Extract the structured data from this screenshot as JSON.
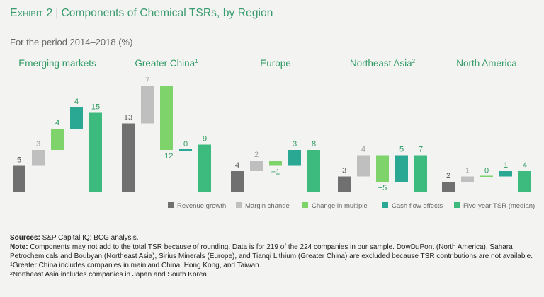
{
  "header": {
    "exhibit": "Exhibit 2",
    "separator": "|",
    "title": "Components of Chemical TSRs, by Region",
    "subtitle": "For the period 2014–2018 (%)"
  },
  "colors": {
    "revenue": "#707070",
    "margin": "#bfbfbf",
    "multiple": "#7ed36a",
    "cashflow": "#2aa893",
    "tsr": "#3dbb7e",
    "label_green": "#2f9a63",
    "label_gray": "#a0a0a0",
    "label_dark": "#555555"
  },
  "chart_data": {
    "type": "waterfall",
    "title": "Components of Chemical TSRs, by Region",
    "unit": "%",
    "component_names": [
      "Revenue growth",
      "Margin change",
      "Change in multiple",
      "Cash flow effects",
      "Five-year TSR (median)"
    ],
    "legend_position": "bottom-right",
    "panels": [
      {
        "region": "Emerging markets",
        "footnote": "",
        "values": [
          5,
          3,
          4,
          4,
          15
        ],
        "labels": [
          "5",
          "3",
          "4",
          "4",
          "15"
        ]
      },
      {
        "region": "Greater China",
        "footnote": "1",
        "values": [
          13,
          7,
          -12,
          0,
          9
        ],
        "labels": [
          "13",
          "7",
          "−12",
          "0",
          "9"
        ]
      },
      {
        "region": "Europe",
        "footnote": "",
        "values": [
          4,
          2,
          -1,
          3,
          8
        ],
        "labels": [
          "4",
          "2",
          "−1",
          "3",
          "8"
        ]
      },
      {
        "region": "Northeast Asia",
        "footnote": "2",
        "values": [
          3,
          4,
          -5,
          5,
          7
        ],
        "labels": [
          "3",
          "4",
          "−5",
          "5",
          "7"
        ]
      },
      {
        "region": "North America",
        "footnote": "",
        "values": [
          2,
          1,
          0,
          1,
          4
        ],
        "labels": [
          "2",
          "1",
          "0",
          "1",
          "4"
        ]
      }
    ]
  },
  "notes": {
    "sources_label": "Sources:",
    "sources_text": "S&P Capital IQ; BCG analysis.",
    "note_label": "Note:",
    "note_text": "Components may not add to the total TSR because of rounding. Data is for 219 of the 224 companies in our sample. DowDuPont (North America), Sahara Petrochemicals and Boubyan (Northeast Asia), Sirius Minerals (Europe), and Tianqi Lithium (Greater China) are excluded because TSR contributions are not available.",
    "footnote1_mark": "1",
    "footnote1_text": "Greater China includes companies in mainland China, Hong Kong, and Taiwan.",
    "footnote2_mark": "2",
    "footnote2_text": "Northeast Asia includes companies in Japan and South Korea."
  }
}
